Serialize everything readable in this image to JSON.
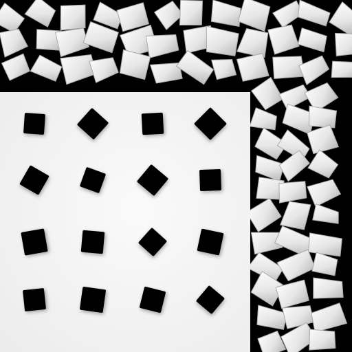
{
  "scene": {
    "background_color": "#000000",
    "panel_color": "#f4f4f4",
    "chip_light": "#f2f2f2",
    "chip_mid": "#d6d6d6",
    "chip_shadow": "#a9a9a9",
    "square_color": "#050505",
    "grid_rows": 4,
    "grid_cols": 4,
    "grid_square_count": 16
  }
}
